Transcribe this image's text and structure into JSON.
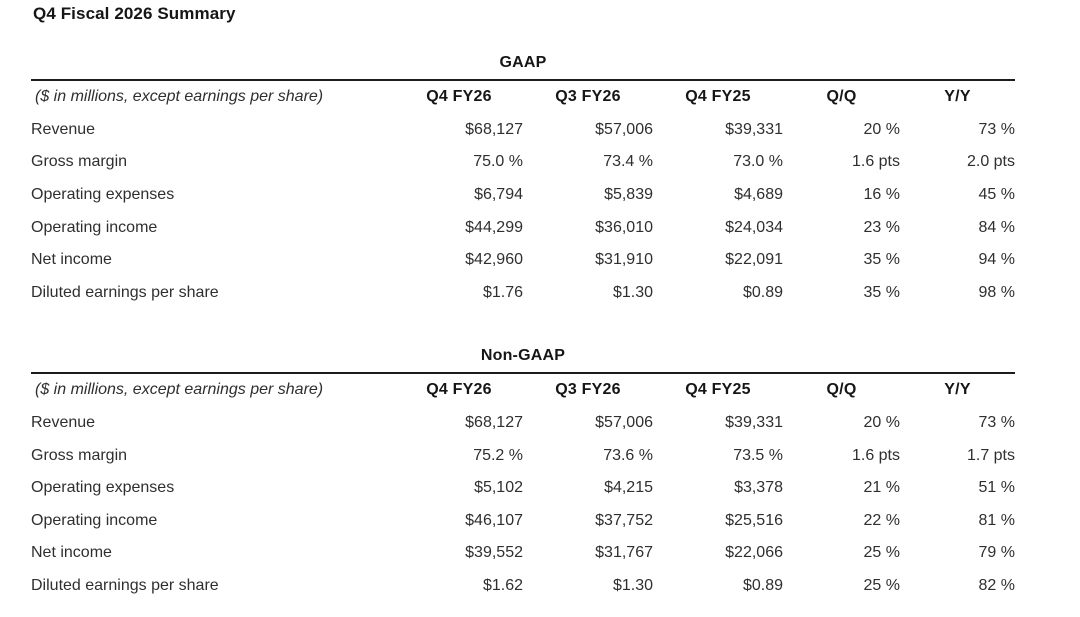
{
  "page": {
    "title": "Q4 Fiscal 2026 Summary"
  },
  "colors": {
    "background": "#ffffff",
    "text": "#2f2f2f",
    "heading": "#161616",
    "rule": "#1c1c1c"
  },
  "tables": [
    {
      "section_title": "GAAP",
      "note": "($ in millions, except earnings per share)",
      "columns": [
        "Q4 FY26",
        "Q3 FY26",
        "Q4 FY25",
        "Q/Q",
        "Y/Y"
      ],
      "rows": [
        {
          "label": "Revenue",
          "values": [
            "$68,127",
            "$57,006",
            "$39,331",
            "20 %",
            "73 %"
          ]
        },
        {
          "label": "Gross margin",
          "values": [
            "75.0 %",
            "73.4 %",
            "73.0 %",
            "1.6 pts",
            "2.0 pts"
          ]
        },
        {
          "label": "Operating expenses",
          "values": [
            "$6,794",
            "$5,839",
            "$4,689",
            "16 %",
            "45 %"
          ]
        },
        {
          "label": "Operating income",
          "values": [
            "$44,299",
            "$36,010",
            "$24,034",
            "23 %",
            "84 %"
          ]
        },
        {
          "label": "Net income",
          "values": [
            "$42,960",
            "$31,910",
            "$22,091",
            "35 %",
            "94 %"
          ]
        },
        {
          "label": "Diluted earnings per share",
          "values": [
            "$1.76",
            "$1.30",
            "$0.89",
            "35 %",
            "98 %"
          ]
        }
      ]
    },
    {
      "section_title": "Non-GAAP",
      "note": "($ in millions, except earnings per share)",
      "columns": [
        "Q4 FY26",
        "Q3 FY26",
        "Q4 FY25",
        "Q/Q",
        "Y/Y"
      ],
      "rows": [
        {
          "label": "Revenue",
          "values": [
            "$68,127",
            "$57,006",
            "$39,331",
            "20 %",
            "73 %"
          ]
        },
        {
          "label": "Gross margin",
          "values": [
            "75.2 %",
            "73.6 %",
            "73.5 %",
            "1.6 pts",
            "1.7 pts"
          ]
        },
        {
          "label": "Operating expenses",
          "values": [
            "$5,102",
            "$4,215",
            "$3,378",
            "21 %",
            "51 %"
          ]
        },
        {
          "label": "Operating income",
          "values": [
            "$46,107",
            "$37,752",
            "$25,516",
            "22 %",
            "81 %"
          ]
        },
        {
          "label": "Net income",
          "values": [
            "$39,552",
            "$31,767",
            "$22,066",
            "25 %",
            "79 %"
          ]
        },
        {
          "label": "Diluted earnings per share",
          "values": [
            "$1.62",
            "$1.30",
            "$0.89",
            "25 %",
            "82 %"
          ]
        }
      ]
    }
  ]
}
